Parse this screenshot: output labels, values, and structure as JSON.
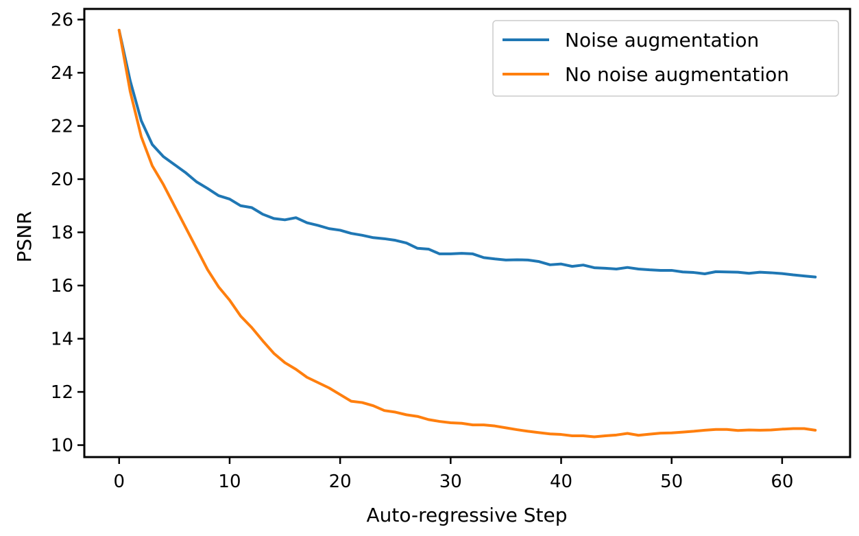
{
  "chart_data": {
    "type": "line",
    "title": "",
    "xlabel": "Auto-regressive Step",
    "ylabel": "PSNR",
    "xlim": [
      -3.15,
      66.15
    ],
    "ylim": [
      9.55,
      26.4
    ],
    "xticks": [
      0,
      10,
      20,
      30,
      40,
      50,
      60
    ],
    "yticks": [
      10,
      12,
      14,
      16,
      18,
      20,
      22,
      24,
      26
    ],
    "grid": false,
    "legend_position": "top-right",
    "x": [
      0,
      1,
      2,
      3,
      4,
      5,
      6,
      7,
      8,
      9,
      10,
      11,
      12,
      13,
      14,
      15,
      16,
      17,
      18,
      19,
      20,
      21,
      22,
      23,
      24,
      25,
      26,
      27,
      28,
      29,
      30,
      31,
      32,
      33,
      34,
      35,
      36,
      37,
      38,
      39,
      40,
      41,
      42,
      43,
      44,
      45,
      46,
      47,
      48,
      49,
      50,
      51,
      52,
      53,
      54,
      55,
      56,
      57,
      58,
      59,
      60,
      61,
      62,
      63
    ],
    "series": [
      {
        "name": "Noise augmentation",
        "color": "#1f77b4",
        "values": [
          25.6,
          23.7,
          22.2,
          21.3,
          20.85,
          20.55,
          20.25,
          19.9,
          19.65,
          19.38,
          19.25,
          19.0,
          18.93,
          18.68,
          18.52,
          18.47,
          18.55,
          18.36,
          18.26,
          18.14,
          18.08,
          17.96,
          17.89,
          17.8,
          17.76,
          17.7,
          17.6,
          17.4,
          17.37,
          17.19,
          17.19,
          17.21,
          17.19,
          17.05,
          17.0,
          16.96,
          16.97,
          16.96,
          16.9,
          16.78,
          16.81,
          16.72,
          16.77,
          16.67,
          16.65,
          16.62,
          16.68,
          16.62,
          16.59,
          16.57,
          16.57,
          16.51,
          16.49,
          16.44,
          16.52,
          16.51,
          16.5,
          16.46,
          16.5,
          16.48,
          16.45,
          16.4,
          16.36,
          16.32
        ]
      },
      {
        "name": "No noise augmentation",
        "color": "#ff7f0e",
        "values": [
          25.6,
          23.3,
          21.6,
          20.5,
          19.8,
          19.0,
          18.2,
          17.4,
          16.6,
          15.95,
          15.45,
          14.85,
          14.42,
          13.92,
          13.45,
          13.1,
          12.85,
          12.55,
          12.35,
          12.15,
          11.9,
          11.65,
          11.6,
          11.48,
          11.3,
          11.24,
          11.14,
          11.08,
          10.96,
          10.89,
          10.84,
          10.82,
          10.76,
          10.76,
          10.72,
          10.65,
          10.58,
          10.52,
          10.47,
          10.42,
          10.4,
          10.35,
          10.35,
          10.31,
          10.35,
          10.38,
          10.44,
          10.37,
          10.41,
          10.45,
          10.46,
          10.49,
          10.52,
          10.56,
          10.59,
          10.59,
          10.55,
          10.57,
          10.56,
          10.57,
          10.6,
          10.62,
          10.62,
          10.56
        ]
      }
    ]
  }
}
